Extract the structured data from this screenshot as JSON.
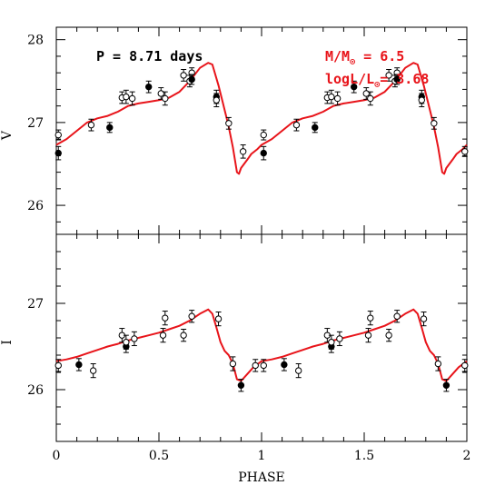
{
  "colors": {
    "model": "#e8141a",
    "axis": "#000000",
    "points": "#000000",
    "annotation_red": "#e8141a"
  },
  "chart_data": {
    "type": "scatter",
    "xlabel": "PHASE",
    "annotations": {
      "period": "P = 8.71 days",
      "mass_text": "M/M",
      "mass_value": " = 6.5",
      "lum_text": "logL/L",
      "lum_value": "= 3.68",
      "sun_symbol": "⊙"
    },
    "panels": [
      {
        "ylabel": "V",
        "ylim": [
          28.15,
          25.65
        ],
        "yticks": [
          26,
          27,
          28
        ],
        "xlim": [
          0,
          2
        ],
        "xticks": [
          0,
          0.5,
          1,
          1.5,
          2
        ],
        "xtick_labels": [
          "0",
          "0.5",
          "1",
          "1.5",
          "2"
        ],
        "points": [
          {
            "x": 0.01,
            "y": 26.63,
            "err": 0.08,
            "filled": true
          },
          {
            "x": 0.01,
            "y": 26.85,
            "err": 0.06,
            "filled": false
          },
          {
            "x": 0.17,
            "y": 26.97,
            "err": 0.07,
            "filled": false
          },
          {
            "x": 0.26,
            "y": 26.94,
            "err": 0.06,
            "filled": true
          },
          {
            "x": 0.32,
            "y": 27.3,
            "err": 0.07,
            "filled": false
          },
          {
            "x": 0.34,
            "y": 27.31,
            "err": 0.08,
            "filled": false
          },
          {
            "x": 0.37,
            "y": 27.29,
            "err": 0.08,
            "filled": false
          },
          {
            "x": 0.45,
            "y": 27.43,
            "err": 0.07,
            "filled": true
          },
          {
            "x": 0.51,
            "y": 27.35,
            "err": 0.07,
            "filled": false
          },
          {
            "x": 0.53,
            "y": 27.29,
            "err": 0.08,
            "filled": false
          },
          {
            "x": 0.62,
            "y": 27.57,
            "err": 0.07,
            "filled": false
          },
          {
            "x": 0.65,
            "y": 27.5,
            "err": 0.07,
            "filled": false
          },
          {
            "x": 0.66,
            "y": 27.6,
            "err": 0.06,
            "filled": false
          },
          {
            "x": 0.66,
            "y": 27.52,
            "err": 0.06,
            "filled": true
          },
          {
            "x": 0.78,
            "y": 27.31,
            "err": 0.08,
            "filled": true
          },
          {
            "x": 0.78,
            "y": 27.27,
            "err": 0.08,
            "filled": false
          },
          {
            "x": 0.84,
            "y": 26.99,
            "err": 0.07,
            "filled": false
          },
          {
            "x": 0.91,
            "y": 26.65,
            "err": 0.08,
            "filled": false
          },
          {
            "x": 1.01,
            "y": 26.63,
            "err": 0.08,
            "filled": true
          },
          {
            "x": 1.01,
            "y": 26.85,
            "err": 0.06,
            "filled": false
          },
          {
            "x": 1.17,
            "y": 26.97,
            "err": 0.07,
            "filled": false
          },
          {
            "x": 1.26,
            "y": 26.94,
            "err": 0.06,
            "filled": true
          },
          {
            "x": 1.32,
            "y": 27.3,
            "err": 0.07,
            "filled": false
          },
          {
            "x": 1.34,
            "y": 27.31,
            "err": 0.08,
            "filled": false
          },
          {
            "x": 1.37,
            "y": 27.29,
            "err": 0.08,
            "filled": false
          },
          {
            "x": 1.45,
            "y": 27.43,
            "err": 0.07,
            "filled": true
          },
          {
            "x": 1.51,
            "y": 27.35,
            "err": 0.07,
            "filled": false
          },
          {
            "x": 1.53,
            "y": 27.29,
            "err": 0.08,
            "filled": false
          },
          {
            "x": 1.62,
            "y": 27.57,
            "err": 0.07,
            "filled": false
          },
          {
            "x": 1.65,
            "y": 27.5,
            "err": 0.07,
            "filled": false
          },
          {
            "x": 1.66,
            "y": 27.6,
            "err": 0.06,
            "filled": false
          },
          {
            "x": 1.66,
            "y": 27.52,
            "err": 0.06,
            "filled": true
          },
          {
            "x": 1.78,
            "y": 27.31,
            "err": 0.08,
            "filled": true
          },
          {
            "x": 1.78,
            "y": 27.27,
            "err": 0.08,
            "filled": false
          },
          {
            "x": 1.84,
            "y": 26.99,
            "err": 0.07,
            "filled": false
          },
          {
            "x": 1.99,
            "y": 26.65,
            "err": 0.06,
            "filled": false
          }
        ],
        "model": {
          "x": [
            0,
            0.05,
            0.1,
            0.15,
            0.2,
            0.25,
            0.3,
            0.35,
            0.4,
            0.45,
            0.5,
            0.55,
            0.6,
            0.65,
            0.7,
            0.74,
            0.76,
            0.79,
            0.81,
            0.83,
            0.84,
            0.86,
            0.88,
            0.89,
            0.9,
            0.93,
            0.95,
            0.98,
            1.0,
            1.05,
            1.1,
            1.15,
            1.2,
            1.25,
            1.3,
            1.35,
            1.4,
            1.45,
            1.5,
            1.55,
            1.6,
            1.65,
            1.7,
            1.74,
            1.76,
            1.79,
            1.81,
            1.83,
            1.84,
            1.86,
            1.88,
            1.89,
            1.9,
            1.93,
            1.95,
            1.98,
            2.0
          ],
          "y": [
            26.73,
            26.8,
            26.9,
            27.0,
            27.05,
            27.08,
            27.13,
            27.2,
            27.23,
            27.25,
            27.27,
            27.3,
            27.37,
            27.5,
            27.66,
            27.72,
            27.7,
            27.45,
            27.25,
            27.05,
            26.95,
            26.7,
            26.4,
            26.38,
            26.45,
            26.55,
            26.62,
            26.68,
            26.73,
            26.8,
            26.9,
            27.0,
            27.05,
            27.08,
            27.13,
            27.2,
            27.23,
            27.25,
            27.27,
            27.3,
            27.37,
            27.5,
            27.66,
            27.72,
            27.7,
            27.45,
            27.25,
            27.05,
            26.95,
            26.7,
            26.4,
            26.38,
            26.45,
            26.55,
            26.62,
            26.68,
            26.73
          ]
        }
      },
      {
        "ylabel": "I",
        "ylim": [
          27.8,
          25.4
        ],
        "yticks": [
          26,
          27
        ],
        "xlim": [
          0,
          2
        ],
        "xticks": [
          0,
          0.5,
          1,
          1.5,
          2
        ],
        "xtick_labels": [
          "0",
          "0.5",
          "1",
          "1.5",
          "2"
        ],
        "points": [
          {
            "x": 0.01,
            "y": 26.28,
            "err": 0.07,
            "filled": false
          },
          {
            "x": 0.11,
            "y": 26.29,
            "err": 0.07,
            "filled": true
          },
          {
            "x": 0.18,
            "y": 26.22,
            "err": 0.08,
            "filled": false
          },
          {
            "x": 0.32,
            "y": 26.63,
            "err": 0.08,
            "filled": false
          },
          {
            "x": 0.34,
            "y": 26.5,
            "err": 0.07,
            "filled": true
          },
          {
            "x": 0.34,
            "y": 26.55,
            "err": 0.08,
            "filled": false
          },
          {
            "x": 0.38,
            "y": 26.59,
            "err": 0.08,
            "filled": false
          },
          {
            "x": 0.52,
            "y": 26.63,
            "err": 0.08,
            "filled": false
          },
          {
            "x": 0.53,
            "y": 26.83,
            "err": 0.08,
            "filled": false
          },
          {
            "x": 0.62,
            "y": 26.63,
            "err": 0.07,
            "filled": false
          },
          {
            "x": 0.66,
            "y": 26.85,
            "err": 0.07,
            "filled": false
          },
          {
            "x": 0.79,
            "y": 26.82,
            "err": 0.08,
            "filled": false
          },
          {
            "x": 0.86,
            "y": 26.3,
            "err": 0.08,
            "filled": false
          },
          {
            "x": 0.9,
            "y": 26.05,
            "err": 0.07,
            "filled": true
          },
          {
            "x": 0.97,
            "y": 26.28,
            "err": 0.07,
            "filled": false
          },
          {
            "x": 1.01,
            "y": 26.28,
            "err": 0.07,
            "filled": false
          },
          {
            "x": 1.11,
            "y": 26.29,
            "err": 0.07,
            "filled": true
          },
          {
            "x": 1.18,
            "y": 26.22,
            "err": 0.08,
            "filled": false
          },
          {
            "x": 1.32,
            "y": 26.63,
            "err": 0.08,
            "filled": false
          },
          {
            "x": 1.34,
            "y": 26.5,
            "err": 0.07,
            "filled": true
          },
          {
            "x": 1.34,
            "y": 26.55,
            "err": 0.08,
            "filled": false
          },
          {
            "x": 1.38,
            "y": 26.59,
            "err": 0.08,
            "filled": false
          },
          {
            "x": 1.52,
            "y": 26.63,
            "err": 0.08,
            "filled": false
          },
          {
            "x": 1.53,
            "y": 26.83,
            "err": 0.08,
            "filled": false
          },
          {
            "x": 1.62,
            "y": 26.63,
            "err": 0.07,
            "filled": false
          },
          {
            "x": 1.66,
            "y": 26.85,
            "err": 0.07,
            "filled": false
          },
          {
            "x": 1.79,
            "y": 26.82,
            "err": 0.08,
            "filled": false
          },
          {
            "x": 1.86,
            "y": 26.3,
            "err": 0.08,
            "filled": false
          },
          {
            "x": 1.9,
            "y": 26.05,
            "err": 0.07,
            "filled": true
          },
          {
            "x": 1.99,
            "y": 26.28,
            "err": 0.07,
            "filled": false
          }
        ],
        "model": {
          "x": [
            0,
            0.05,
            0.1,
            0.15,
            0.2,
            0.25,
            0.3,
            0.35,
            0.4,
            0.45,
            0.5,
            0.55,
            0.6,
            0.65,
            0.7,
            0.74,
            0.76,
            0.78,
            0.8,
            0.82,
            0.84,
            0.86,
            0.88,
            0.9,
            0.93,
            0.96,
            1.0,
            1.05,
            1.1,
            1.15,
            1.2,
            1.25,
            1.3,
            1.35,
            1.4,
            1.45,
            1.5,
            1.55,
            1.6,
            1.65,
            1.7,
            1.74,
            1.76,
            1.78,
            1.8,
            1.82,
            1.84,
            1.86,
            1.88,
            1.9,
            1.93,
            1.96,
            2.0
          ],
          "y": [
            26.33,
            26.35,
            26.38,
            26.42,
            26.46,
            26.5,
            26.53,
            26.57,
            26.6,
            26.63,
            26.66,
            26.7,
            26.74,
            26.8,
            26.88,
            26.93,
            26.88,
            26.72,
            26.55,
            26.45,
            26.4,
            26.3,
            26.12,
            26.1,
            26.18,
            26.26,
            26.33,
            26.35,
            26.38,
            26.42,
            26.46,
            26.5,
            26.53,
            26.57,
            26.6,
            26.63,
            26.66,
            26.7,
            26.74,
            26.8,
            26.88,
            26.93,
            26.88,
            26.72,
            26.55,
            26.45,
            26.4,
            26.3,
            26.12,
            26.1,
            26.18,
            26.26,
            26.33
          ]
        }
      }
    ]
  }
}
